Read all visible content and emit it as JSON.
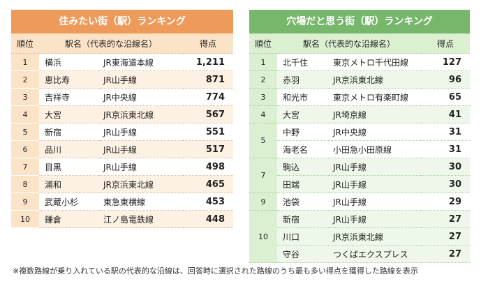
{
  "left": {
    "title": "住みたい街（駅）ランキング",
    "headers": {
      "rank": "順位",
      "station": "駅名（代表的な沿線名）",
      "score": "得点"
    },
    "rows": [
      {
        "rank": "1",
        "station": "横浜",
        "line": "JR東海道本線",
        "score": "1,211"
      },
      {
        "rank": "2",
        "station": "恵比寿",
        "line": "JR山手線",
        "score": "871"
      },
      {
        "rank": "3",
        "station": "吉祥寺",
        "line": "JR中央線",
        "score": "774"
      },
      {
        "rank": "4",
        "station": "大宮",
        "line": "JR京浜東北線",
        "score": "567"
      },
      {
        "rank": "5",
        "station": "新宿",
        "line": "JR山手線",
        "score": "551"
      },
      {
        "rank": "6",
        "station": "品川",
        "line": "JR山手線",
        "score": "517"
      },
      {
        "rank": "7",
        "station": "目黒",
        "line": "JR山手線",
        "score": "498"
      },
      {
        "rank": "8",
        "station": "浦和",
        "line": "JR京浜東北線",
        "score": "465"
      },
      {
        "rank": "9",
        "station": "武蔵小杉",
        "line": "東急東横線",
        "score": "453"
      },
      {
        "rank": "10",
        "station": "鎌倉",
        "line": "江ノ島電鉄線",
        "score": "448"
      }
    ]
  },
  "right": {
    "title": "穴場だと思う街（駅）ランキング",
    "headers": {
      "rank": "順位",
      "station": "駅名（代表的な沿線名）",
      "score": "得点"
    },
    "rows": [
      {
        "rank": "1",
        "station": "北千住",
        "line": "東京メトロ千代田線",
        "score": "127"
      },
      {
        "rank": "2",
        "station": "赤羽",
        "line": "JR京浜東北線",
        "score": "96"
      },
      {
        "rank": "3",
        "station": "和光市",
        "line": "東京メトロ有楽町線",
        "score": "65"
      },
      {
        "rank": "4",
        "station": "大宮",
        "line": "JR埼京線",
        "score": "41"
      },
      {
        "rank": "5",
        "station": "中野",
        "line": "JR中央線",
        "score": "31"
      },
      {
        "rank": "",
        "station": "海老名",
        "line": "小田急小田原線",
        "score": "31"
      },
      {
        "rank": "7",
        "station": "駒込",
        "line": "JR山手線",
        "score": "30"
      },
      {
        "rank": "",
        "station": "田端",
        "line": "JR山手線",
        "score": "30"
      },
      {
        "rank": "9",
        "station": "池袋",
        "line": "JR山手線",
        "score": "29"
      },
      {
        "rank": "10",
        "station": "新宿",
        "line": "JR山手線",
        "score": "27"
      },
      {
        "rank": "",
        "station": "川口",
        "line": "JR京浜東北線",
        "score": "27"
      },
      {
        "rank": "",
        "station": "守谷",
        "line": "つくばエクスプレス",
        "score": "27"
      }
    ]
  },
  "note": "※複数路線が乗り入れている駅の代表的な沿線は、回答時に選択された路線のうち最も多い得点を獲得した路線を表示",
  "colors": {
    "left_accent": "#ee9a5a",
    "right_accent": "#77b76c"
  }
}
